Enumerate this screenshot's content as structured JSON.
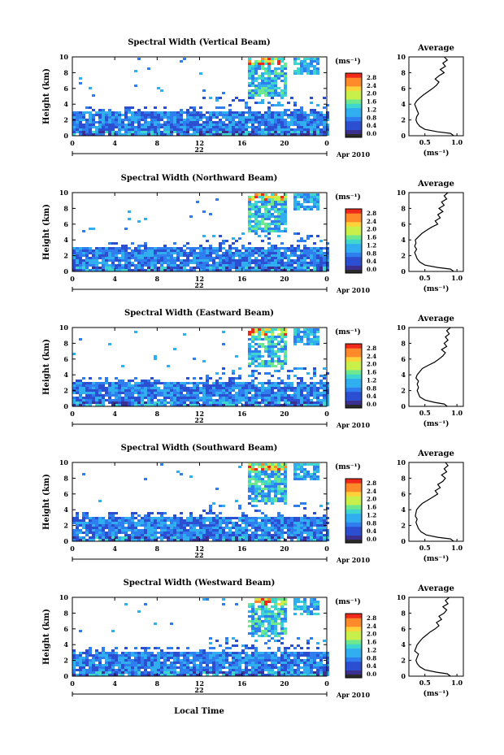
{
  "chart_data": {
    "type": "heatmap",
    "xlabel": "Local Time",
    "day_label": "22",
    "month_label": "Apr 2010",
    "x_ticks": [
      "0",
      "4",
      "8",
      "12",
      "16",
      "20",
      "0"
    ],
    "xlim_hours": [
      0,
      24
    ],
    "y_ticks": [
      "0",
      "2",
      "4",
      "6",
      "8",
      "10"
    ],
    "ylabel": "Height (km)",
    "ylim_km": [
      0,
      10
    ],
    "colorbar": {
      "unit": "(ms⁻¹)",
      "ticks": [
        "0.0",
        "0.4",
        "0.8",
        "1.2",
        "1.6",
        "2.0",
        "2.4",
        "2.8"
      ],
      "range": [
        0,
        2.8
      ],
      "colors": [
        "#3b2f8f",
        "#2b4fd0",
        "#2f7ef0",
        "#30aef0",
        "#40d6d0",
        "#6ee88e",
        "#c8ef4a",
        "#ffd23a",
        "#ff8a2a",
        "#f02a1a"
      ]
    },
    "profile_title": "Average",
    "profile_xlabel": "(ms⁻¹)",
    "profile_xticks": [
      "0.5",
      "1.0"
    ],
    "profile_xlim": [
      0.25,
      1.1
    ],
    "beams": [
      {
        "title": "Spectral Width (Vertical Beam)",
        "profile": [
          [
            0.95,
            0
          ],
          [
            0.9,
            0.3
          ],
          [
            0.7,
            0.5
          ],
          [
            0.5,
            0.8
          ],
          [
            0.42,
            1.2
          ],
          [
            0.38,
            1.6
          ],
          [
            0.36,
            2.0
          ],
          [
            0.37,
            2.4
          ],
          [
            0.4,
            2.8
          ],
          [
            0.38,
            3.2
          ],
          [
            0.36,
            3.6
          ],
          [
            0.34,
            4.0
          ],
          [
            0.37,
            4.4
          ],
          [
            0.42,
            4.8
          ],
          [
            0.48,
            5.2
          ],
          [
            0.55,
            5.6
          ],
          [
            0.62,
            6.0
          ],
          [
            0.68,
            6.4
          ],
          [
            0.72,
            6.8
          ],
          [
            0.66,
            7.2
          ],
          [
            0.72,
            7.6
          ],
          [
            0.8,
            8.0
          ],
          [
            0.74,
            8.4
          ],
          [
            0.82,
            8.8
          ],
          [
            0.78,
            9.2
          ],
          [
            0.85,
            9.6
          ],
          [
            0.8,
            10
          ]
        ]
      },
      {
        "title": "Spectral Width (Northward Beam)",
        "profile": [
          [
            0.95,
            0
          ],
          [
            0.9,
            0.3
          ],
          [
            0.7,
            0.5
          ],
          [
            0.5,
            0.8
          ],
          [
            0.42,
            1.2
          ],
          [
            0.38,
            1.6
          ],
          [
            0.36,
            2.0
          ],
          [
            0.34,
            2.4
          ],
          [
            0.37,
            2.8
          ],
          [
            0.34,
            3.2
          ],
          [
            0.36,
            3.6
          ],
          [
            0.35,
            4.0
          ],
          [
            0.4,
            4.4
          ],
          [
            0.45,
            4.8
          ],
          [
            0.52,
            5.2
          ],
          [
            0.6,
            5.6
          ],
          [
            0.7,
            6.0
          ],
          [
            0.66,
            6.4
          ],
          [
            0.74,
            6.8
          ],
          [
            0.7,
            7.2
          ],
          [
            0.78,
            7.6
          ],
          [
            0.72,
            8.0
          ],
          [
            0.8,
            8.4
          ],
          [
            0.76,
            8.8
          ],
          [
            0.84,
            9.2
          ],
          [
            0.8,
            9.6
          ],
          [
            0.86,
            10
          ]
        ]
      },
      {
        "title": "Spectral Width (Eastward Beam)",
        "profile": [
          [
            0.85,
            0
          ],
          [
            0.8,
            0.3
          ],
          [
            0.65,
            0.5
          ],
          [
            0.5,
            0.8
          ],
          [
            0.42,
            1.2
          ],
          [
            0.4,
            1.6
          ],
          [
            0.38,
            2.0
          ],
          [
            0.4,
            2.4
          ],
          [
            0.38,
            2.8
          ],
          [
            0.4,
            3.2
          ],
          [
            0.36,
            3.6
          ],
          [
            0.38,
            4.0
          ],
          [
            0.42,
            4.4
          ],
          [
            0.46,
            4.8
          ],
          [
            0.55,
            5.2
          ],
          [
            0.65,
            5.6
          ],
          [
            0.72,
            6.0
          ],
          [
            0.78,
            6.4
          ],
          [
            0.82,
            6.8
          ],
          [
            0.76,
            7.2
          ],
          [
            0.84,
            7.6
          ],
          [
            0.8,
            8.0
          ],
          [
            0.86,
            8.4
          ],
          [
            0.82,
            8.8
          ],
          [
            0.88,
            9.2
          ],
          [
            0.84,
            9.6
          ],
          [
            0.9,
            10
          ]
        ]
      },
      {
        "title": "Spectral Width (Southward Beam)",
        "profile": [
          [
            0.95,
            0
          ],
          [
            0.9,
            0.3
          ],
          [
            0.7,
            0.5
          ],
          [
            0.52,
            0.8
          ],
          [
            0.44,
            1.2
          ],
          [
            0.4,
            1.6
          ],
          [
            0.38,
            2.0
          ],
          [
            0.36,
            2.4
          ],
          [
            0.38,
            2.8
          ],
          [
            0.35,
            3.2
          ],
          [
            0.36,
            3.6
          ],
          [
            0.37,
            4.0
          ],
          [
            0.41,
            4.4
          ],
          [
            0.46,
            4.8
          ],
          [
            0.54,
            5.2
          ],
          [
            0.62,
            5.6
          ],
          [
            0.7,
            6.0
          ],
          [
            0.66,
            6.4
          ],
          [
            0.74,
            6.8
          ],
          [
            0.7,
            7.2
          ],
          [
            0.78,
            7.6
          ],
          [
            0.82,
            8.0
          ],
          [
            0.76,
            8.4
          ],
          [
            0.84,
            8.8
          ],
          [
            0.8,
            9.2
          ],
          [
            0.86,
            9.6
          ],
          [
            0.82,
            10
          ]
        ]
      },
      {
        "title": "Spectral Width (Westward Beam)",
        "profile": [
          [
            0.9,
            0
          ],
          [
            0.85,
            0.3
          ],
          [
            0.68,
            0.5
          ],
          [
            0.5,
            0.8
          ],
          [
            0.42,
            1.2
          ],
          [
            0.38,
            1.6
          ],
          [
            0.36,
            2.0
          ],
          [
            0.38,
            2.4
          ],
          [
            0.4,
            2.8
          ],
          [
            0.34,
            3.2
          ],
          [
            0.36,
            3.6
          ],
          [
            0.38,
            4.0
          ],
          [
            0.42,
            4.4
          ],
          [
            0.46,
            4.8
          ],
          [
            0.52,
            5.2
          ],
          [
            0.58,
            5.6
          ],
          [
            0.66,
            6.0
          ],
          [
            0.72,
            6.4
          ],
          [
            0.68,
            6.8
          ],
          [
            0.76,
            7.2
          ],
          [
            0.72,
            7.6
          ],
          [
            0.8,
            8.0
          ],
          [
            0.84,
            8.4
          ],
          [
            0.78,
            8.8
          ],
          [
            0.86,
            9.2
          ],
          [
            0.82,
            9.6
          ],
          [
            0.88,
            10
          ]
        ]
      }
    ]
  }
}
